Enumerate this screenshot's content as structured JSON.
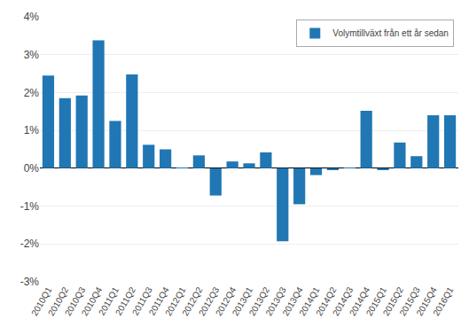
{
  "chart_data": {
    "type": "bar",
    "categories": [
      "2010Q1",
      "2010Q2",
      "2010Q3",
      "2010Q4",
      "2011Q1",
      "2011Q2",
      "2011Q3",
      "2011Q4",
      "2012Q1",
      "2012Q2",
      "2012Q3",
      "2012Q4",
      "2013Q1",
      "2013Q2",
      "2013Q3",
      "2013Q4",
      "2014Q1",
      "2014Q2",
      "2014Q3",
      "2014Q4",
      "2015Q1",
      "2015Q2",
      "2015Q3",
      "2015Q4",
      "2016Q1"
    ],
    "series": [
      {
        "name": "Volymtillväxt från ett år sedan",
        "color": "#2077b4",
        "values": [
          2.45,
          1.85,
          1.92,
          3.38,
          1.25,
          2.48,
          0.62,
          0.5,
          0.02,
          0.34,
          -0.72,
          0.18,
          0.13,
          0.42,
          -1.93,
          -0.95,
          -0.18,
          -0.05,
          0.02,
          1.52,
          -0.05,
          0.68,
          0.32,
          1.4,
          1.4
        ]
      }
    ],
    "ylim": [
      -3,
      4
    ],
    "yticks": [
      {
        "value": -3,
        "label": "-3%"
      },
      {
        "value": -2,
        "label": "-2%"
      },
      {
        "value": -1,
        "label": "-1%"
      },
      {
        "value": 0,
        "label": "0%"
      },
      {
        "value": 1,
        "label": "1%"
      },
      {
        "value": 2,
        "label": "2%"
      },
      {
        "value": 3,
        "label": "3%"
      },
      {
        "value": 4,
        "label": "4%"
      }
    ],
    "grid": true,
    "legend": "upper right"
  }
}
